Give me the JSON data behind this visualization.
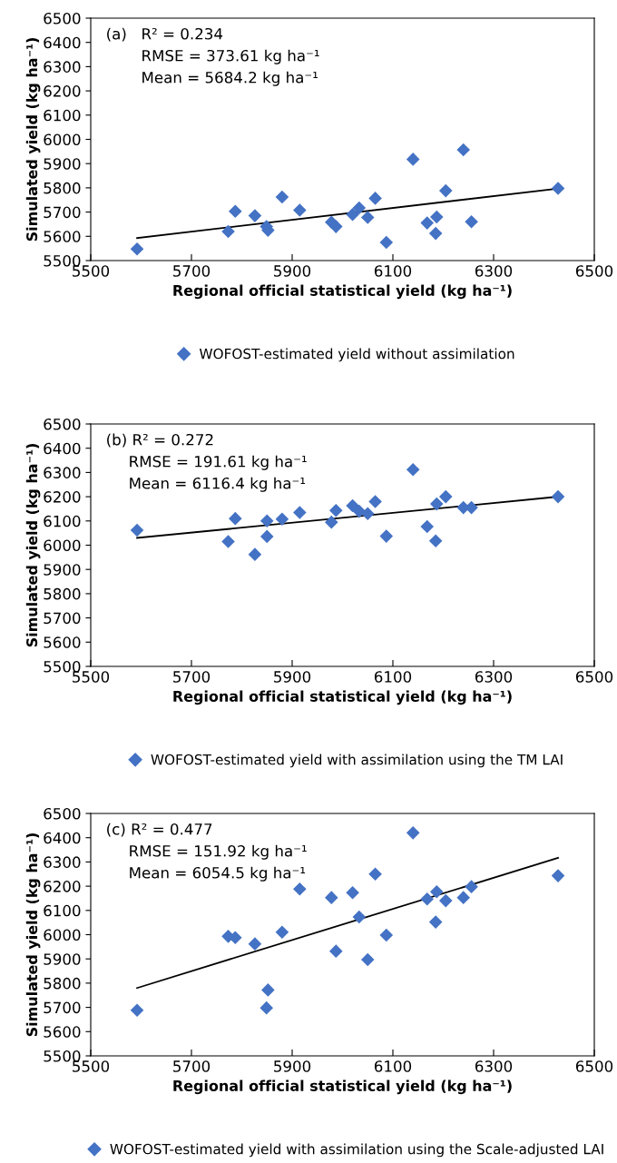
{
  "chart_data": [
    {
      "type": "scatter",
      "xlabel": "Regional official statistical yield (kg ha⁻¹)",
      "ylabel": "Simulated yield (kg ha⁻¹)",
      "annotations": [
        "(a)",
        "R² = 0.234",
        "RMSE = 373.61 kg ha⁻¹",
        "Mean = 5684.2 kg ha⁻¹"
      ],
      "xlim": [
        5500,
        6500
      ],
      "xticks": [
        5500,
        5700,
        5900,
        6100,
        6300,
        6500
      ],
      "ylim": [
        5500,
        6500
      ],
      "yticks": [
        5500,
        5600,
        5700,
        5800,
        5900,
        6000,
        6100,
        6200,
        6300,
        6400,
        6500
      ],
      "grid": false,
      "legend": "bottom",
      "series": [
        {
          "name": "WOFOST-estimated yield without assimilation",
          "marker": "diamond",
          "color": "#4472c4",
          "x": [
            5592,
            5773,
            5787,
            5826,
            5849,
            5852,
            5880,
            5915,
            5978,
            5987,
            6020,
            6033,
            6050,
            6065,
            6087,
            6140,
            6168,
            6185,
            6187,
            6205,
            6240,
            6256,
            6428
          ],
          "values": [
            5548,
            5620,
            5703,
            5685,
            5640,
            5625,
            5762,
            5708,
            5658,
            5640,
            5690,
            5717,
            5678,
            5757,
            5575,
            5918,
            5655,
            5612,
            5680,
            5788,
            5957,
            5660,
            5798
          ]
        },
        {
          "type": "line",
          "color": "#000000",
          "x": [
            5592,
            6428
          ],
          "values": [
            5593,
            5797
          ]
        }
      ]
    },
    {
      "type": "scatter",
      "xlabel": "Regional official statistical yield (kg ha⁻¹)",
      "ylabel": "Simulated yield (kg ha⁻¹)",
      "annotations": [
        "(b) R² = 0.272",
        "RMSE = 191.61 kg ha⁻¹",
        "Mean = 6116.4 kg ha⁻¹"
      ],
      "xlim": [
        5500,
        6500
      ],
      "xticks": [
        5500,
        5700,
        5900,
        6100,
        6300,
        6500
      ],
      "ylim": [
        5500,
        6500
      ],
      "yticks": [
        5500,
        5600,
        5700,
        5800,
        5900,
        6000,
        6100,
        6200,
        6300,
        6400,
        6500
      ],
      "grid": false,
      "legend": "bottom",
      "series": [
        {
          "name": "WOFOST-estimated yield with assimilation using the TM LAI",
          "marker": "diamond",
          "color": "#4472c4",
          "x": [
            5592,
            5773,
            5787,
            5826,
            5850,
            5850,
            5880,
            5915,
            5978,
            5987,
            6020,
            6033,
            6050,
            6065,
            6087,
            6140,
            6168,
            6185,
            6187,
            6205,
            6240,
            6256,
            6428
          ],
          "values": [
            6062,
            6015,
            6110,
            5962,
            6100,
            6036,
            6108,
            6135,
            6095,
            6143,
            6163,
            6140,
            6130,
            6180,
            6037,
            6312,
            6077,
            6018,
            6170,
            6200,
            6155,
            6155,
            6200
          ]
        },
        {
          "type": "line",
          "color": "#000000",
          "x": [
            5592,
            6428
          ],
          "values": [
            6030,
            6200
          ]
        }
      ]
    },
    {
      "type": "scatter",
      "xlabel": "Regional official statistical yield (kg ha⁻¹)",
      "ylabel": "Simulated yield (kg ha⁻¹)",
      "annotations": [
        "(c) R² = 0.477",
        "RMSE = 151.92 kg ha⁻¹",
        "Mean = 6054.5 kg ha⁻¹"
      ],
      "xlim": [
        5500,
        6500
      ],
      "xticks": [
        5500,
        5700,
        5900,
        6100,
        6300,
        6500
      ],
      "ylim": [
        5500,
        6500
      ],
      "yticks": [
        5500,
        5600,
        5700,
        5800,
        5900,
        6000,
        6100,
        6200,
        6300,
        6400,
        6500
      ],
      "grid": false,
      "legend": "bottom",
      "series": [
        {
          "name": "WOFOST-estimated yield with assimilation using the Scale-adjusted LAI",
          "marker": "diamond",
          "color": "#4472c4",
          "x": [
            5592,
            5773,
            5787,
            5826,
            5849,
            5852,
            5880,
            5915,
            5978,
            5987,
            6020,
            6033,
            6050,
            6065,
            6087,
            6140,
            6168,
            6185,
            6187,
            6205,
            6240,
            6256,
            6428
          ],
          "values": [
            5688,
            5993,
            5988,
            5962,
            5698,
            5772,
            6010,
            6188,
            6153,
            5932,
            6173,
            6073,
            5897,
            6250,
            5998,
            6420,
            6147,
            6052,
            6177,
            6140,
            6153,
            6198,
            6243
          ]
        },
        {
          "type": "line",
          "color": "#000000",
          "x": [
            5592,
            6428
          ],
          "values": [
            5780,
            6317
          ]
        }
      ]
    }
  ]
}
